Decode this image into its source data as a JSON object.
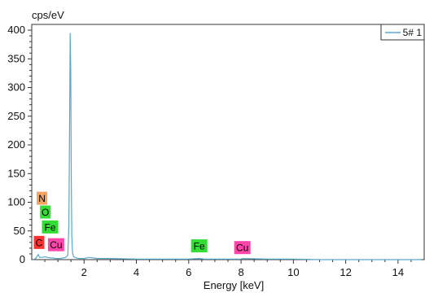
{
  "chart_data": {
    "type": "line",
    "title": "",
    "xlabel": "Energy [keV]",
    "ylabel": "cps/eV",
    "xlim": [
      0,
      15
    ],
    "ylim": [
      0,
      410
    ],
    "xticks": [
      2,
      4,
      6,
      8,
      10,
      12,
      14
    ],
    "yticks": [
      0,
      50,
      100,
      150,
      200,
      250,
      300,
      350,
      400
    ],
    "grid": false,
    "legend_position": "top-right",
    "series": [
      {
        "name": "5# 1",
        "color": "#5aa8c8",
        "x": [
          0.05,
          0.15,
          0.25,
          0.3,
          0.4,
          0.5,
          0.6,
          0.7,
          0.8,
          0.9,
          1.0,
          1.1,
          1.2,
          1.3,
          1.38,
          1.42,
          1.45,
          1.47,
          1.49,
          1.51,
          1.53,
          1.56,
          1.6,
          1.7,
          1.8,
          2.0,
          2.2,
          2.5,
          3.0,
          4.0,
          5.0,
          6.0,
          6.4,
          6.6,
          7.0,
          8.0,
          8.05,
          9.0,
          10.0,
          11.0,
          12.0,
          13.0,
          14.0,
          14.9
        ],
        "y": [
          0,
          2,
          9,
          4,
          4,
          5,
          4,
          3,
          3,
          2,
          2,
          2,
          3,
          4,
          8,
          60,
          260,
          395,
          330,
          150,
          40,
          12,
          5,
          3,
          2,
          2,
          4,
          2,
          2,
          1,
          1,
          1,
          2,
          1,
          1,
          1,
          2,
          1,
          1,
          0,
          0,
          0,
          0,
          0
        ]
      }
    ],
    "element_labels": [
      {
        "text": "N",
        "x": 0.39,
        "y": 107,
        "color": "#f4a460"
      },
      {
        "text": "O",
        "x": 0.52,
        "y": 83,
        "color": "#33dd33"
      },
      {
        "text": "Fe",
        "x": 0.7,
        "y": 57,
        "color": "#33dd33"
      },
      {
        "text": "C",
        "x": 0.28,
        "y": 30,
        "color": "#ff3333"
      },
      {
        "text": "Cu",
        "x": 0.93,
        "y": 26,
        "color": "#ff44aa"
      },
      {
        "text": "Fe",
        "x": 6.4,
        "y": 24,
        "color": "#33dd33"
      },
      {
        "text": "Cu",
        "x": 8.05,
        "y": 21,
        "color": "#ff44aa"
      }
    ]
  }
}
